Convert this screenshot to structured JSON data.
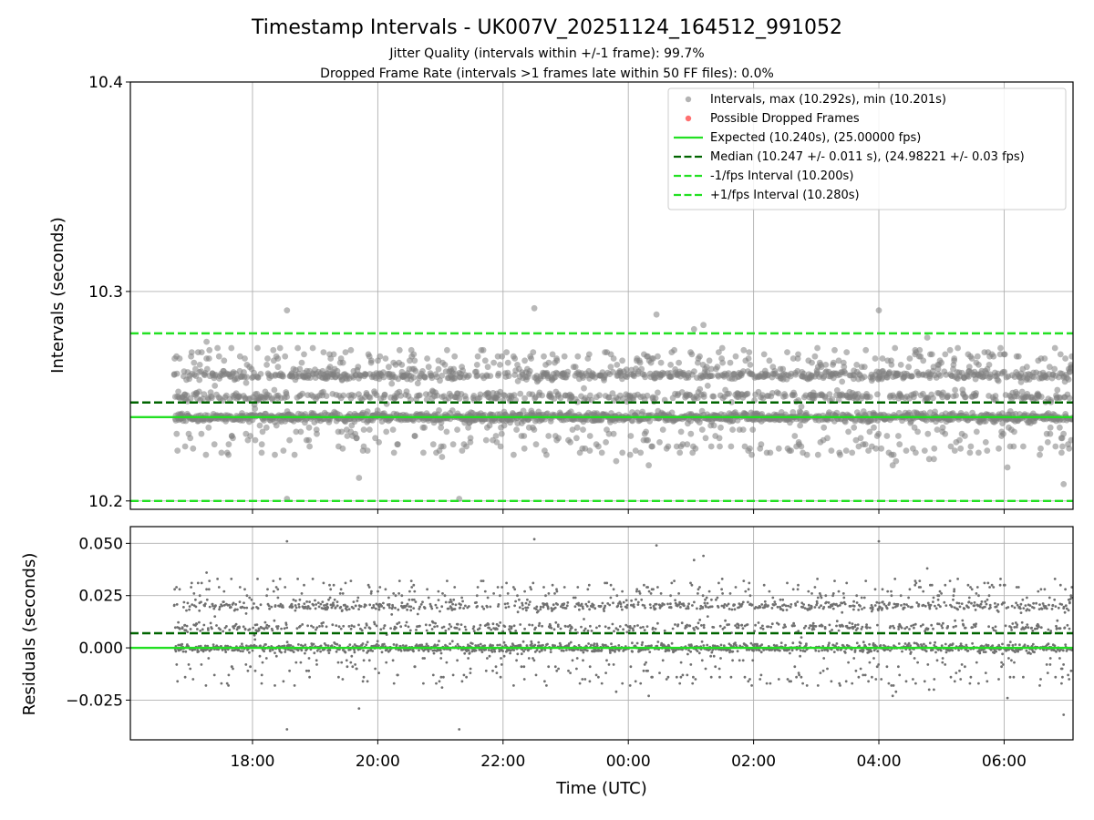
{
  "figure": {
    "title": "Timestamp Intervals - UK007V_20251124_164512_991052",
    "subtitle_1": "Jitter Quality (intervals within +/-1 frame): 99.7%",
    "subtitle_2": "Dropped Frame Rate (intervals >1 frames late within 50 FF files): 0.0%"
  },
  "colors": {
    "points": "#808080",
    "dropped": "#ff4040",
    "expected": "#22e022",
    "median": "#006400",
    "bound": "#22e022",
    "grid": "#b0b0b0"
  },
  "chart_data": [
    {
      "type": "scatter",
      "name": "intervals-panel",
      "ylabel": "Intervals (seconds)",
      "xlabel": "",
      "ylim": [
        10.196,
        10.4
      ],
      "yticks": [
        10.2,
        10.3,
        10.4
      ],
      "ytick_labels": [
        "10.2",
        "10.3",
        "10.4"
      ],
      "grid": true,
      "legend_position": "top-right",
      "x_range_hours": [
        16.05,
        31.1
      ],
      "data_x_range_hours": [
        16.75,
        31.1
      ],
      "xticks_hours": [
        18,
        20,
        22,
        24,
        26,
        28,
        30
      ],
      "xtick_labels": [
        "18:00",
        "20:00",
        "22:00",
        "00:00",
        "02:00",
        "04:00",
        "06:00"
      ],
      "legend": [
        "Intervals, max (10.292s), min (10.201s)",
        "Possible Dropped Frames",
        "Expected (10.240s), (25.00000 fps)",
        "Median (10.247 +/- 0.011 s), (24.98221 +/- 0.03 fps)",
        "-1/fps Interval (10.200s)",
        "+1/fps Interval (10.280s)"
      ],
      "series": [
        {
          "name": "Intervals",
          "max": 10.292,
          "min": 10.201,
          "levels": [
            10.24,
            10.25,
            10.26
          ],
          "level_weights": [
            0.52,
            0.2,
            0.28
          ],
          "count_estimate": 5000
        },
        {
          "name": "Possible Dropped Frames",
          "count": 0
        }
      ],
      "lines": [
        {
          "name": "Expected",
          "y": 10.24,
          "style": "solid"
        },
        {
          "name": "Median",
          "y": 10.247,
          "style": "dashed"
        },
        {
          "name": "-1/fps Interval",
          "y": 10.2,
          "style": "dashed"
        },
        {
          "name": "+1/fps Interval",
          "y": 10.28,
          "style": "dashed"
        }
      ]
    },
    {
      "type": "scatter",
      "name": "residuals-panel",
      "ylabel": "Residuals (seconds)",
      "xlabel": "Time (UTC)",
      "ylim": [
        -0.044,
        0.058
      ],
      "yticks": [
        -0.025,
        0.0,
        0.025,
        0.05
      ],
      "ytick_labels": [
        "−0.025",
        "0.000",
        "0.025",
        "0.050"
      ],
      "grid": true,
      "x_range_hours": [
        16.05,
        31.1
      ],
      "xticks_hours": [
        18,
        20,
        22,
        24,
        26,
        28,
        30
      ],
      "xtick_labels": [
        "18:00",
        "20:00",
        "22:00",
        "00:00",
        "02:00",
        "04:00",
        "06:00"
      ],
      "series": [
        {
          "name": "Residuals",
          "max": 0.052,
          "min": -0.039,
          "levels": [
            0.0,
            0.01,
            0.02
          ]
        }
      ],
      "lines": [
        {
          "name": "Zero",
          "y": 0.0,
          "style": "solid"
        },
        {
          "name": "Median offset",
          "y": 0.007,
          "style": "dashed"
        }
      ]
    }
  ]
}
